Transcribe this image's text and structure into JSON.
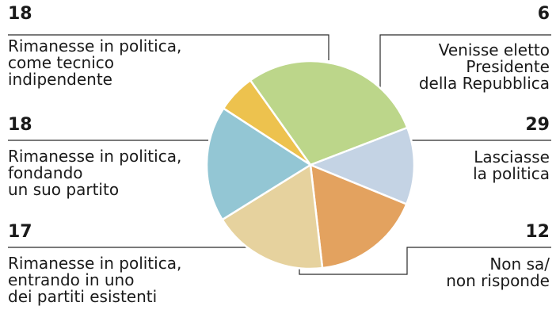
{
  "chart_data": {
    "type": "pie",
    "title": "",
    "slices": [
      {
        "value": 6,
        "number": "6",
        "label": [
          "Venisse eletto",
          "Presidente",
          "della Repubblica"
        ],
        "color": "#edc24e"
      },
      {
        "value": 29,
        "number": "29",
        "label": [
          "Lasciasse",
          "la politica"
        ],
        "color": "#bcd68a"
      },
      {
        "value": 12,
        "number": "12",
        "label": [
          "Non sa/",
          "non risponde"
        ],
        "color": "#c4d3e4"
      },
      {
        "value": 17,
        "number": "17",
        "label": [
          "Rimanesse in politica,",
          "entrando in uno",
          "dei partiti esistenti"
        ],
        "color": "#e3a25f"
      },
      {
        "value": 18,
        "number": "18",
        "label": [
          "Rimanesse in politica,",
          "fondando",
          "un suo partito"
        ],
        "color": "#e6d29e"
      },
      {
        "value": 18,
        "number": "18",
        "label": [
          "Rimanesse in politica,",
          "come tecnico",
          "indipendente"
        ],
        "color": "#93c6d4"
      }
    ]
  }
}
